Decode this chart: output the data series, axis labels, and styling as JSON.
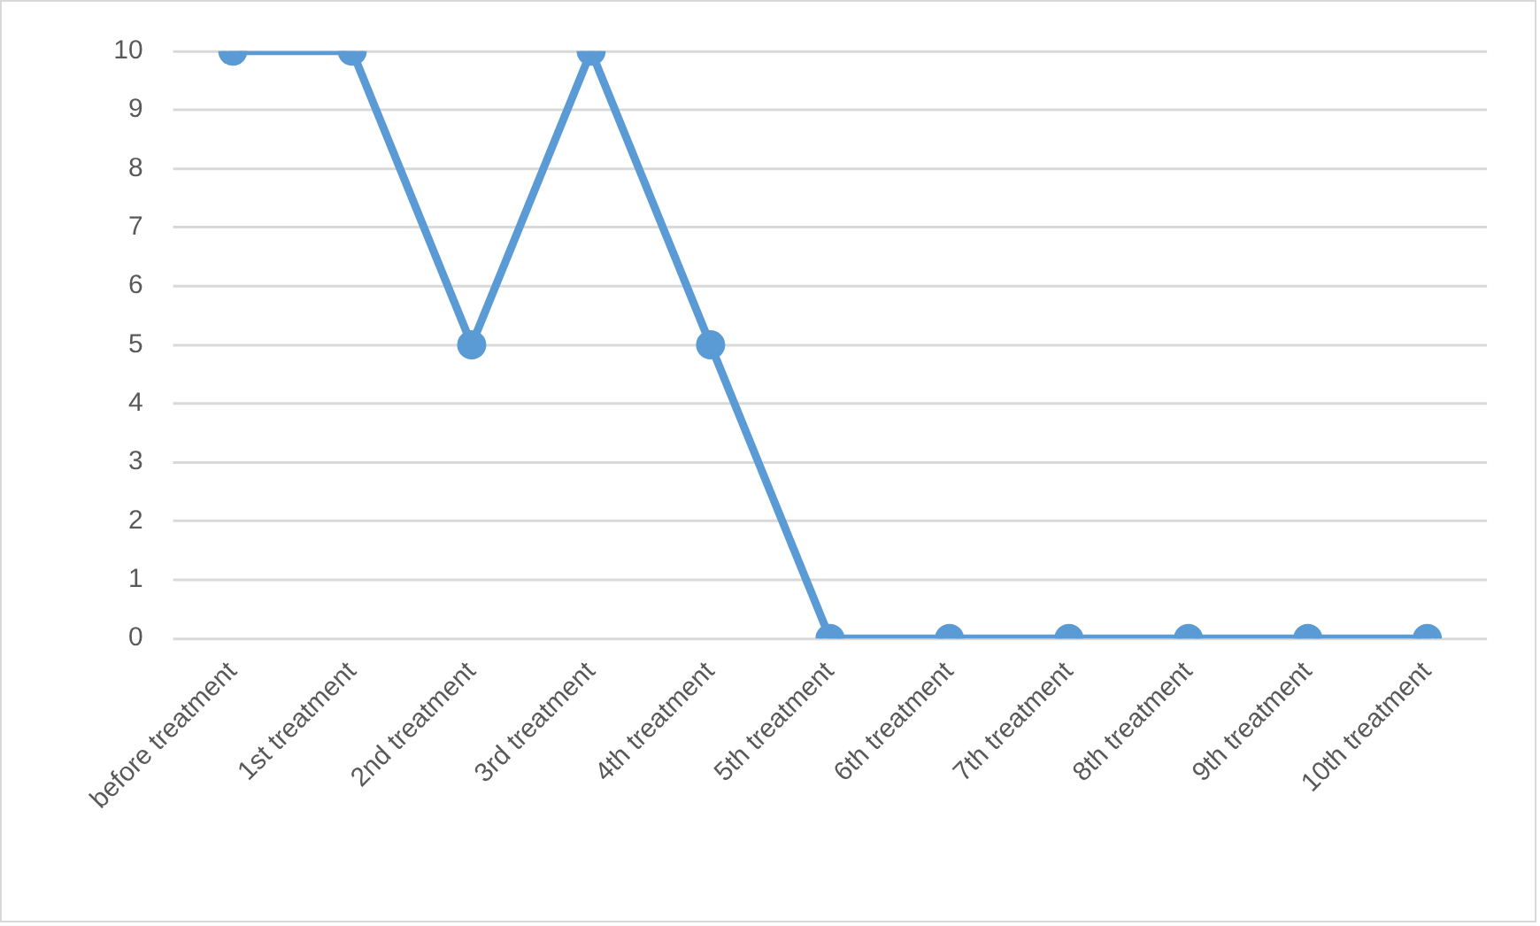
{
  "chart_data": {
    "type": "line",
    "categories": [
      "before treatment",
      "1st treatment",
      "2nd treatment",
      "3rd treatment",
      "4th treatment",
      "5th treatment",
      "6th treatment",
      "7th treatment",
      "8th treatment",
      "9th treatment",
      "10th treatment"
    ],
    "values": [
      10,
      10,
      5,
      10,
      5,
      0,
      0,
      0,
      0,
      0,
      0
    ],
    "color": "#5b9bd5",
    "ylim": [
      0,
      10
    ],
    "yticks": [
      0,
      1,
      2,
      3,
      4,
      5,
      6,
      7,
      8,
      9,
      10
    ],
    "grid": "y",
    "marker": "circle",
    "line_style": "solid"
  }
}
